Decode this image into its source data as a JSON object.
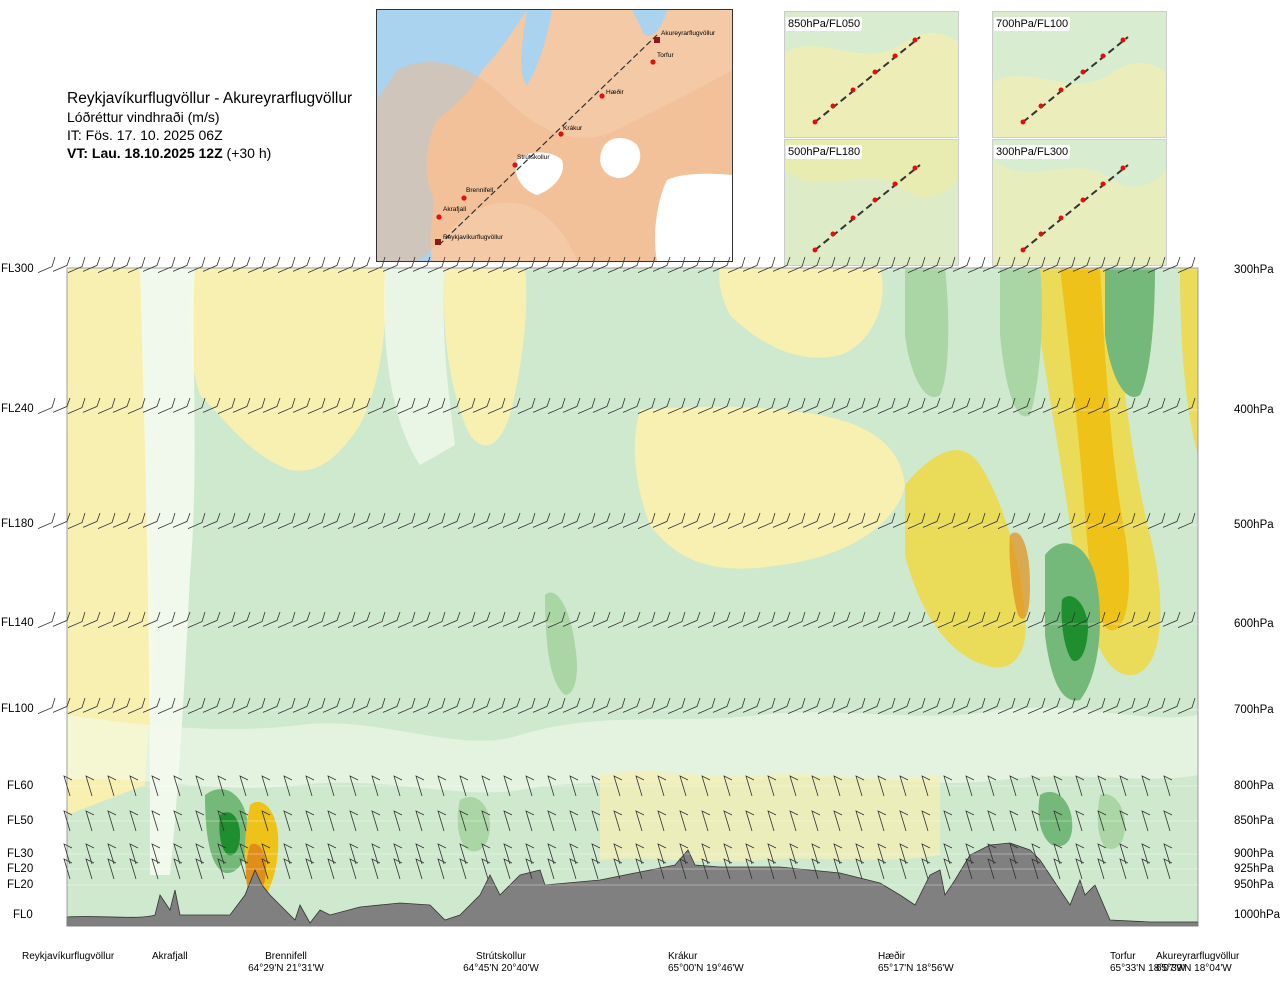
{
  "header": {
    "route": "Reykjavíkurflugvöllur - Akureyrarflugvöllur",
    "quantity": "Lóðréttur vindhraði (m/s)",
    "issue_time": "IT: Fös. 17. 10. 2025 06Z",
    "valid_bold": "VT: Lau. 18.10.2025 12Z",
    "valid_offset": "(+30 h)"
  },
  "map": {
    "waypoints": [
      "Akureyrarflugvöllur",
      "Torfur",
      "Hæðir",
      "Krákur",
      "Strútskollur",
      "Brennifell",
      "Akrafjall",
      "Reykjavíkurflugvöllur"
    ],
    "colors": {
      "sea": "#a9d3ef",
      "land": "#f3c9a6",
      "ice": "#ffffff",
      "route": "#333333",
      "point": "#e01010"
    }
  },
  "thumbnails": [
    "850hPa/FL050",
    "700hPa/FL100",
    "500hPa/FL180",
    "300hPa/FL300"
  ],
  "levels": [
    {
      "fl": "FL300",
      "hpa": "300hPa"
    },
    {
      "fl": "FL240",
      "hpa": "400hPa"
    },
    {
      "fl": "FL180",
      "hpa": "500hPa"
    },
    {
      "fl": "FL140",
      "hpa": "600hPa"
    },
    {
      "fl": "FL100",
      "hpa": "700hPa"
    },
    {
      "fl": "FL60",
      "hpa": "800hPa"
    },
    {
      "fl": "FL50",
      "hpa": "850hPa"
    },
    {
      "fl": "FL30",
      "hpa": "900hPa"
    },
    {
      "fl": "FL20",
      "hpa": "925hPa"
    },
    {
      "fl": "FL20",
      "hpa": "950hPa"
    },
    {
      "fl": "FL0",
      "hpa": "1000hPa"
    }
  ],
  "waypoints_bottom": [
    {
      "name": "Reykjavíkurflugvöllur",
      "coord": ""
    },
    {
      "name": "Akrafjall",
      "coord": ""
    },
    {
      "name": "Brennifell",
      "coord": "64°29'N 21°31'W"
    },
    {
      "name": "Strútskollur",
      "coord": "64°45'N 20°40'W"
    },
    {
      "name": "Krákur",
      "coord": "65°00'N 19°46'W"
    },
    {
      "name": "Hæðir",
      "coord": "65°17'N 18°56'W"
    },
    {
      "name": "Torfur",
      "coord": "65°33'N 18°07'W"
    },
    {
      "name": "Akureyrarflugvöllur",
      "coord": "65°39'N 18°04'W"
    }
  ],
  "chart_data": {
    "type": "heatmap",
    "x_categories": [
      "Reykjavíkurflugvöllur",
      "Akrafjall",
      "Brennifell",
      "Strútskollur",
      "Krákur",
      "Hæðir",
      "Torfur",
      "Akureyrarflugvöllur"
    ],
    "y_levels_hpa": [
      300,
      400,
      500,
      600,
      700,
      800,
      850,
      900,
      925,
      950,
      1000
    ],
    "colors": {
      "strong_down": "#1e8e2e",
      "down": "#74b979",
      "weak_down": "#a9d6a4",
      "slight_down": "#cfe9cf",
      "neutral": "#f4fbee",
      "slight_up": "#f7f0b0",
      "up": "#eadb58",
      "strong_up": "#efc21a",
      "very_strong_up": "#e08e1a",
      "terrain": "#808080"
    },
    "terrain_max_fl": 30
  }
}
